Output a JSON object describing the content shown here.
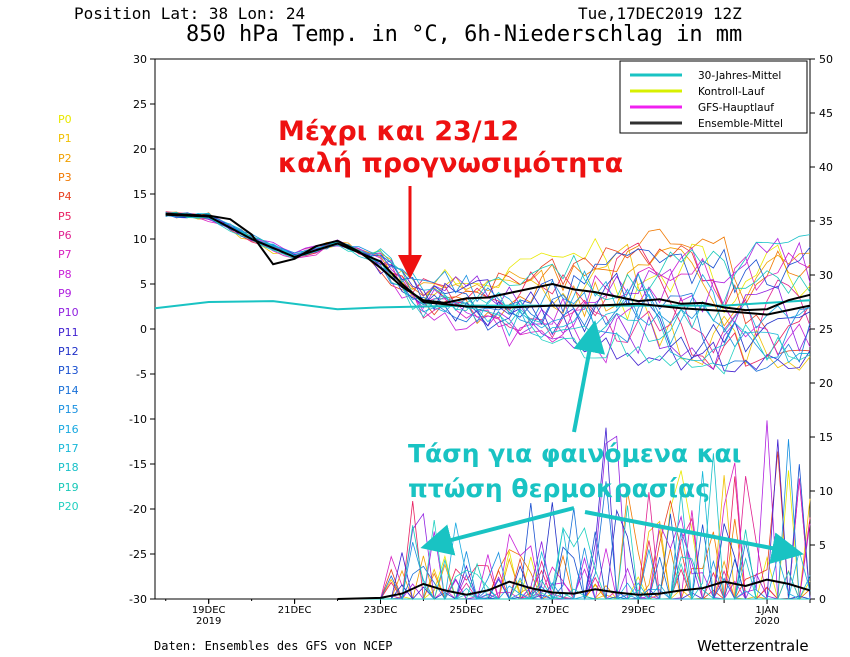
{
  "header": {
    "position": "Position   Lat: 38 Lon: 24",
    "date": "Tue,17DEC2019 12Z",
    "title": "850 hPa Temp. in °C, 6h-Niederschlag in mm"
  },
  "footer": {
    "source": "Daten: Ensembles des GFS von NCEP",
    "brand": "Wetterzentrale"
  },
  "members": [
    {
      "label": "P0",
      "color": "#e8e800"
    },
    {
      "label": "P1",
      "color": "#f0c000"
    },
    {
      "label": "P2",
      "color": "#f0a000"
    },
    {
      "label": "P3",
      "color": "#f07800"
    },
    {
      "label": "P4",
      "color": "#e84020"
    },
    {
      "label": "P5",
      "color": "#e82060"
    },
    {
      "label": "P6",
      "color": "#e02090"
    },
    {
      "label": "P7",
      "color": "#d820c0"
    },
    {
      "label": "P8",
      "color": "#c820d8"
    },
    {
      "label": "P9",
      "color": "#b020e0"
    },
    {
      "label": "P10",
      "color": "#9020e0"
    },
    {
      "label": "P11",
      "color": "#4020d0"
    },
    {
      "label": "P12",
      "color": "#2030c8"
    },
    {
      "label": "P13",
      "color": "#1850d0"
    },
    {
      "label": "P14",
      "color": "#1870d8"
    },
    {
      "label": "P15",
      "color": "#1890e0"
    },
    {
      "label": "P16",
      "color": "#18a8e0"
    },
    {
      "label": "P17",
      "color": "#18b8d8"
    },
    {
      "label": "P18",
      "color": "#18c0c8"
    },
    {
      "label": "P19",
      "color": "#18c8b8"
    },
    {
      "label": "P20",
      "color": "#20d0c0"
    }
  ],
  "annotations": {
    "red_line1": "Μέχρι και 23/12",
    "red_line2": "καλή προγνωσιμότητα",
    "cyan_line1": "Τάση για φαινόμενα και",
    "cyan_line2": "πτώση θερμοκρασίας",
    "red_color": "#ee1111",
    "cyan_color": "#19c3c3"
  },
  "chart_data": {
    "type": "line",
    "y_left": {
      "range": [
        -30,
        30
      ],
      "ticks": [
        30,
        25,
        20,
        15,
        10,
        5,
        0,
        -5,
        -10,
        -15,
        -20,
        -25,
        -30
      ]
    },
    "y_right": {
      "range": [
        0,
        50
      ],
      "ticks": [
        50,
        45,
        40,
        35,
        30,
        25,
        20,
        15,
        10,
        5,
        0
      ]
    },
    "x_ticks": [
      {
        "label": "19DEC",
        "sub": "2019",
        "day": 19
      },
      {
        "label": "21DEC",
        "sub": "",
        "day": 21
      },
      {
        "label": "23DEC",
        "sub": "",
        "day": 23
      },
      {
        "label": "25DEC",
        "sub": "",
        "day": 25
      },
      {
        "label": "27DEC",
        "sub": "",
        "day": 27
      },
      {
        "label": "29DEC",
        "sub": "",
        "day": 29
      },
      {
        "label": "1JAN",
        "sub": "2020",
        "day": 32
      }
    ],
    "x_range_days": [
      17.75,
      33.0
    ],
    "legend": [
      {
        "name": "30-Jahres-Mittel",
        "color": "#19c3c3"
      },
      {
        "name": "Kontroll-Lauf",
        "color": "#d8f000"
      },
      {
        "name": "GFS-Hauptlauf",
        "color": "#f020f0"
      },
      {
        "name": "Ensemble-Mittel",
        "color": "#303030"
      }
    ],
    "legend_position": "top-right",
    "climatology": {
      "days": [
        17.75,
        19,
        20.5,
        22,
        23,
        25,
        27,
        29,
        31,
        33
      ],
      "values": [
        2.3,
        3.0,
        3.1,
        2.2,
        2.4,
        2.6,
        2.6,
        2.6,
        2.6,
        3.2
      ]
    },
    "ensemble_mean": {
      "days": [
        18,
        19,
        19.5,
        20,
        20.5,
        21,
        21.5,
        22,
        22.5,
        23,
        23.5,
        24,
        24.5,
        25,
        25.5,
        26,
        26.5,
        27,
        27.5,
        28,
        28.5,
        29,
        29.5,
        30,
        30.5,
        31,
        31.5,
        32,
        32.5,
        33
      ],
      "values": [
        12.8,
        12.6,
        12.2,
        10.5,
        7.2,
        7.8,
        9.2,
        9.8,
        8.6,
        6.8,
        4.7,
        3.2,
        2.9,
        3.4,
        3.5,
        4.0,
        4.5,
        5.0,
        4.4,
        4.1,
        3.6,
        3.1,
        3.3,
        2.8,
        2.9,
        2.4,
        2.1,
        2.2,
        3.2,
        3.8
      ]
    },
    "ensemble_mean_trend": {
      "days": [
        18,
        19,
        20,
        21,
        22,
        23,
        23.5,
        24,
        25,
        26,
        27,
        28,
        29,
        30,
        31,
        32,
        33
      ],
      "values": [
        12.7,
        12.5,
        10,
        8,
        9.5,
        7.5,
        5,
        3,
        2.5,
        2.4,
        2.6,
        2.6,
        2.8,
        2.3,
        2.0,
        1.6,
        2.6
      ]
    },
    "precip_mean": {
      "days": [
        22,
        23,
        23.5,
        24,
        24.5,
        25,
        25.5,
        26,
        26.5,
        27,
        27.5,
        28,
        28.5,
        29,
        29.5,
        30,
        30.5,
        31,
        31.5,
        32,
        32.5,
        33
      ],
      "values": [
        0,
        0.1,
        0.5,
        1.4,
        0.8,
        0.4,
        0.8,
        1.6,
        1.0,
        0.6,
        0.5,
        0.9,
        0.6,
        0.4,
        0.5,
        0.8,
        1.0,
        1.6,
        1.2,
        1.8,
        1.4,
        0.8
      ]
    }
  }
}
